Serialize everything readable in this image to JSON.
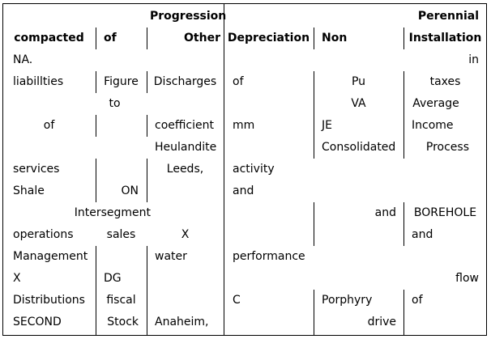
{
  "columns": [
    {
      "top": "",
      "bottom": "compacted"
    },
    {
      "top": "",
      "bottom": "of"
    },
    {
      "top": "Progression",
      "bottom": "Other"
    },
    {
      "top": "",
      "bottom": "Depreciation"
    },
    {
      "top": "",
      "bottom": "Non"
    },
    {
      "top": "Perennial",
      "bottom": "Installation"
    }
  ],
  "rows": [
    [
      "NA.",
      "",
      "",
      "",
      "",
      "in"
    ],
    [
      "liabillties",
      "Figure",
      "Discharges",
      "of",
      "Pu",
      "taxes"
    ],
    [
      "",
      "to",
      "",
      "",
      "VA",
      "Average"
    ],
    [
      "of",
      "",
      "coefficient",
      "mm",
      "JE",
      "Income"
    ],
    [
      "",
      "",
      "Heulandite",
      "",
      "Consolidated",
      "Process"
    ],
    [
      "services",
      "",
      "Leeds,",
      "activity",
      "",
      ""
    ],
    [
      "Shale",
      "ON",
      "",
      "and",
      "",
      ""
    ],
    [
      "",
      "Intersegment",
      "",
      "",
      "and",
      "BOREHOLE"
    ],
    [
      "operations",
      "sales",
      "X",
      "",
      "",
      "and"
    ],
    [
      "Management",
      "",
      "water",
      "performance",
      "",
      ""
    ],
    [
      "X",
      "DG",
      "",
      "",
      "",
      "flow"
    ],
    [
      "Distributions",
      "fiscal",
      "",
      "C",
      "Porphyry",
      "of"
    ],
    [
      "SECOND",
      "Stock",
      "Anaheim,",
      "",
      "drive",
      ""
    ]
  ]
}
